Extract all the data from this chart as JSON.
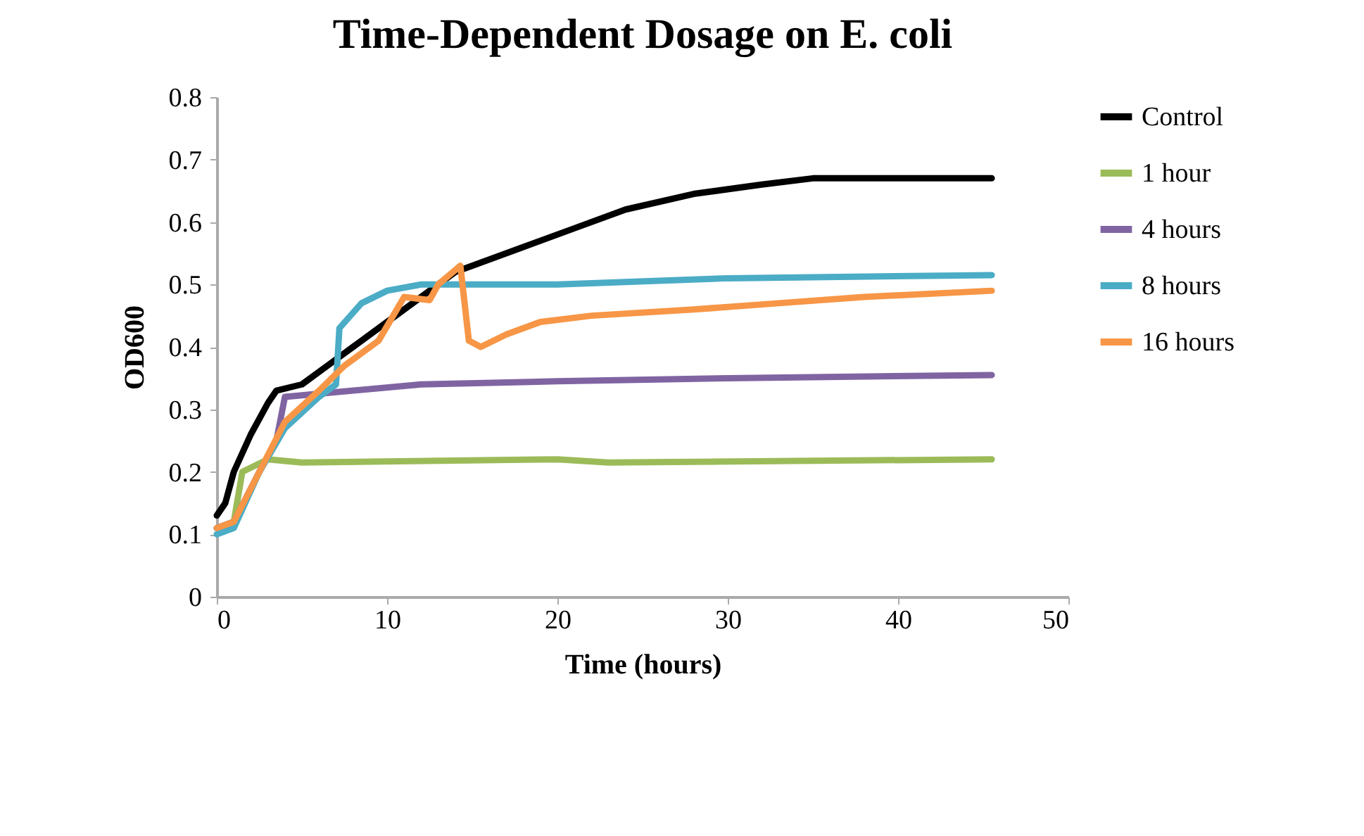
{
  "chart_data": {
    "type": "line",
    "title": "Time-Dependent Dosage on E. coli",
    "xlabel": "Time (hours)",
    "ylabel": "OD600",
    "xlim": [
      0,
      50
    ],
    "xticks": [
      0,
      10,
      20,
      30,
      40,
      50
    ],
    "ylim": [
      0,
      0.8
    ],
    "yticks": [
      0,
      0.1,
      0.2,
      0.3,
      0.4,
      0.5,
      0.6,
      0.7,
      0.8
    ],
    "grid": false,
    "legend": "right",
    "marker": "none",
    "line_style": "solid",
    "series": [
      {
        "name": "Control",
        "color": "#000000",
        "x": [
          0,
          0.5,
          1,
          2,
          3,
          3.5,
          5,
          6.5,
          8,
          10,
          12,
          14,
          16,
          18,
          21,
          24,
          28,
          32,
          35,
          45.5
        ],
        "values": [
          0.13,
          0.15,
          0.2,
          0.26,
          0.31,
          0.33,
          0.34,
          0.37,
          0.4,
          0.44,
          0.48,
          0.52,
          0.54,
          0.56,
          0.59,
          0.62,
          0.645,
          0.66,
          0.67,
          0.67
        ]
      },
      {
        "name": "1 hour",
        "color": "#9bbb59",
        "x": [
          0,
          1,
          1.5,
          3,
          5,
          20,
          23,
          45.5
        ],
        "values": [
          0.11,
          0.12,
          0.2,
          0.22,
          0.215,
          0.22,
          0.215,
          0.22
        ]
      },
      {
        "name": "4 hours",
        "color": "#8064a2",
        "x": [
          0,
          1,
          2.5,
          3.5,
          4,
          6,
          12,
          20,
          30,
          45.5
        ],
        "values": [
          0.11,
          0.12,
          0.2,
          0.25,
          0.32,
          0.325,
          0.34,
          0.345,
          0.35,
          0.355
        ]
      },
      {
        "name": "8 hours",
        "color": "#4bacc6",
        "x": [
          0,
          1,
          2.5,
          4,
          6,
          7,
          7.2,
          8.5,
          10,
          12,
          20,
          30,
          45.5
        ],
        "values": [
          0.1,
          0.11,
          0.2,
          0.27,
          0.32,
          0.34,
          0.43,
          0.47,
          0.49,
          0.5,
          0.5,
          0.51,
          0.515
        ]
      },
      {
        "name": "16 hours",
        "color": "#f79646",
        "x": [
          0,
          1,
          2.5,
          4,
          6,
          7.5,
          9.5,
          11,
          12.5,
          13,
          14.3,
          14.8,
          15.5,
          17,
          19,
          22,
          28,
          33,
          38,
          45.5
        ],
        "values": [
          0.11,
          0.12,
          0.2,
          0.28,
          0.33,
          0.37,
          0.41,
          0.48,
          0.475,
          0.5,
          0.53,
          0.41,
          0.4,
          0.42,
          0.44,
          0.45,
          0.46,
          0.47,
          0.48,
          0.49
        ]
      }
    ]
  }
}
